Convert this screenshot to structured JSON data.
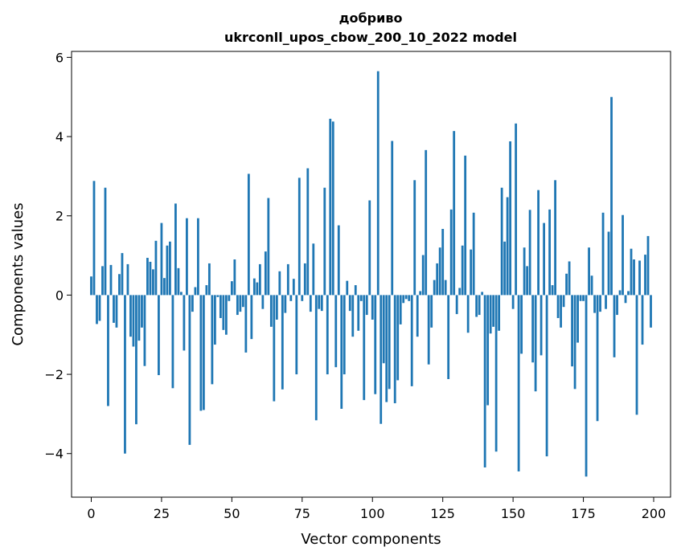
{
  "chart_data": {
    "type": "bar",
    "title": "добриво",
    "subtitle": "ukrconll_upos_cbow_200_10_2022 model",
    "xlabel": "Vector components",
    "ylabel": "Components values",
    "xlim": [
      -7,
      206
    ],
    "ylim": [
      -5.1,
      6.15
    ],
    "xticks": [
      0,
      25,
      50,
      75,
      100,
      125,
      150,
      175,
      200
    ],
    "yticks": [
      -4,
      -2,
      0,
      2,
      4,
      6
    ],
    "xtick_labels": [
      "0",
      "25",
      "50",
      "75",
      "100",
      "125",
      "150",
      "175",
      "200"
    ],
    "ytick_labels": [
      "−4",
      "−2",
      "0",
      "2",
      "4",
      "6"
    ],
    "grid": false,
    "bar_color": "#1f77b4",
    "x": [
      0,
      1,
      2,
      3,
      4,
      5,
      6,
      7,
      8,
      9,
      10,
      11,
      12,
      13,
      14,
      15,
      16,
      17,
      18,
      19,
      20,
      21,
      22,
      23,
      24,
      25,
      26,
      27,
      28,
      29,
      30,
      31,
      32,
      33,
      34,
      35,
      36,
      37,
      38,
      39,
      40,
      41,
      42,
      43,
      44,
      45,
      46,
      47,
      48,
      49,
      50,
      51,
      52,
      53,
      54,
      55,
      56,
      57,
      58,
      59,
      60,
      61,
      62,
      63,
      64,
      65,
      66,
      67,
      68,
      69,
      70,
      71,
      72,
      73,
      74,
      75,
      76,
      77,
      78,
      79,
      80,
      81,
      82,
      83,
      84,
      85,
      86,
      87,
      88,
      89,
      90,
      91,
      92,
      93,
      94,
      95,
      96,
      97,
      98,
      99,
      100,
      101,
      102,
      103,
      104,
      105,
      106,
      107,
      108,
      109,
      110,
      111,
      112,
      113,
      114,
      115,
      116,
      117,
      118,
      119,
      120,
      121,
      122,
      123,
      124,
      125,
      126,
      127,
      128,
      129,
      130,
      131,
      132,
      133,
      134,
      135,
      136,
      137,
      138,
      139,
      140,
      141,
      142,
      143,
      144,
      145,
      146,
      147,
      148,
      149,
      150,
      151,
      152,
      153,
      154,
      155,
      156,
      157,
      158,
      159,
      160,
      161,
      162,
      163,
      164,
      165,
      166,
      167,
      168,
      169,
      170,
      171,
      172,
      173,
      174,
      175,
      176,
      177,
      178,
      179,
      180,
      181,
      182,
      183,
      184,
      185,
      186,
      187,
      188,
      189,
      190,
      191,
      192,
      193,
      194,
      195,
      196,
      197,
      198,
      199
    ],
    "values": [
      0.47,
      2.88,
      -0.73,
      -0.65,
      0.73,
      2.71,
      -2.8,
      0.76,
      -0.7,
      -0.82,
      0.53,
      1.06,
      -4.0,
      0.78,
      -1.05,
      -1.3,
      -3.26,
      -1.15,
      -0.82,
      -1.79,
      0.94,
      0.84,
      0.65,
      1.37,
      -2.02,
      1.82,
      0.43,
      1.25,
      1.35,
      -2.35,
      2.31,
      0.68,
      0.08,
      -1.4,
      1.94,
      -3.78,
      -0.42,
      0.2,
      1.94,
      -2.92,
      -2.9,
      0.25,
      0.8,
      -2.25,
      -1.25,
      -0.05,
      -0.58,
      -0.88,
      -1.0,
      -0.15,
      0.35,
      0.9,
      -0.5,
      -0.42,
      -0.3,
      -1.45,
      3.06,
      -1.11,
      0.42,
      0.32,
      0.78,
      -0.35,
      1.1,
      2.45,
      -0.8,
      -2.68,
      -0.62,
      0.6,
      -2.38,
      -0.45,
      0.78,
      -0.15,
      0.41,
      -2.0,
      2.96,
      -0.15,
      0.8,
      3.2,
      -0.42,
      1.3,
      -3.16,
      -0.35,
      -0.4,
      2.71,
      -2.0,
      4.45,
      4.38,
      -1.82,
      1.76,
      -2.87,
      -2.0,
      0.36,
      -0.4,
      -1.05,
      0.25,
      -0.9,
      -0.15,
      -2.65,
      -0.5,
      2.39,
      -0.62,
      -2.5,
      5.65,
      -3.25,
      -1.72,
      -2.7,
      -2.37,
      3.89,
      -2.73,
      -2.15,
      -0.74,
      -0.2,
      -0.1,
      -0.15,
      -2.3,
      2.9,
      -1.05,
      0.1,
      1.01,
      3.66,
      -1.75,
      -0.82,
      0.38,
      0.8,
      1.2,
      1.67,
      0.38,
      -2.12,
      2.16,
      4.14,
      -0.48,
      0.18,
      1.25,
      3.52,
      -0.95,
      1.15,
      2.08,
      -0.55,
      -0.5,
      0.08,
      -4.35,
      -2.78,
      -0.97,
      -0.8,
      -3.95,
      -0.9,
      2.71,
      1.35,
      2.47,
      3.88,
      -0.35,
      4.33,
      -4.45,
      -1.48,
      1.2,
      0.73,
      2.15,
      -1.7,
      -2.43,
      2.65,
      -1.52,
      1.82,
      -4.07,
      2.16,
      0.25,
      2.9,
      -0.58,
      -0.82,
      -0.3,
      0.54,
      0.85,
      -1.8,
      -2.37,
      -1.2,
      -0.15,
      -0.15,
      -4.58,
      1.2,
      0.49,
      -0.45,
      -3.18,
      -0.42,
      2.08,
      -0.35,
      1.6,
      5.0,
      -1.57,
      -0.5,
      0.12,
      2.02,
      -0.2,
      0.1,
      1.17,
      0.9,
      -3.02,
      0.87,
      -1.25,
      1.02,
      1.49,
      -0.82
    ]
  }
}
